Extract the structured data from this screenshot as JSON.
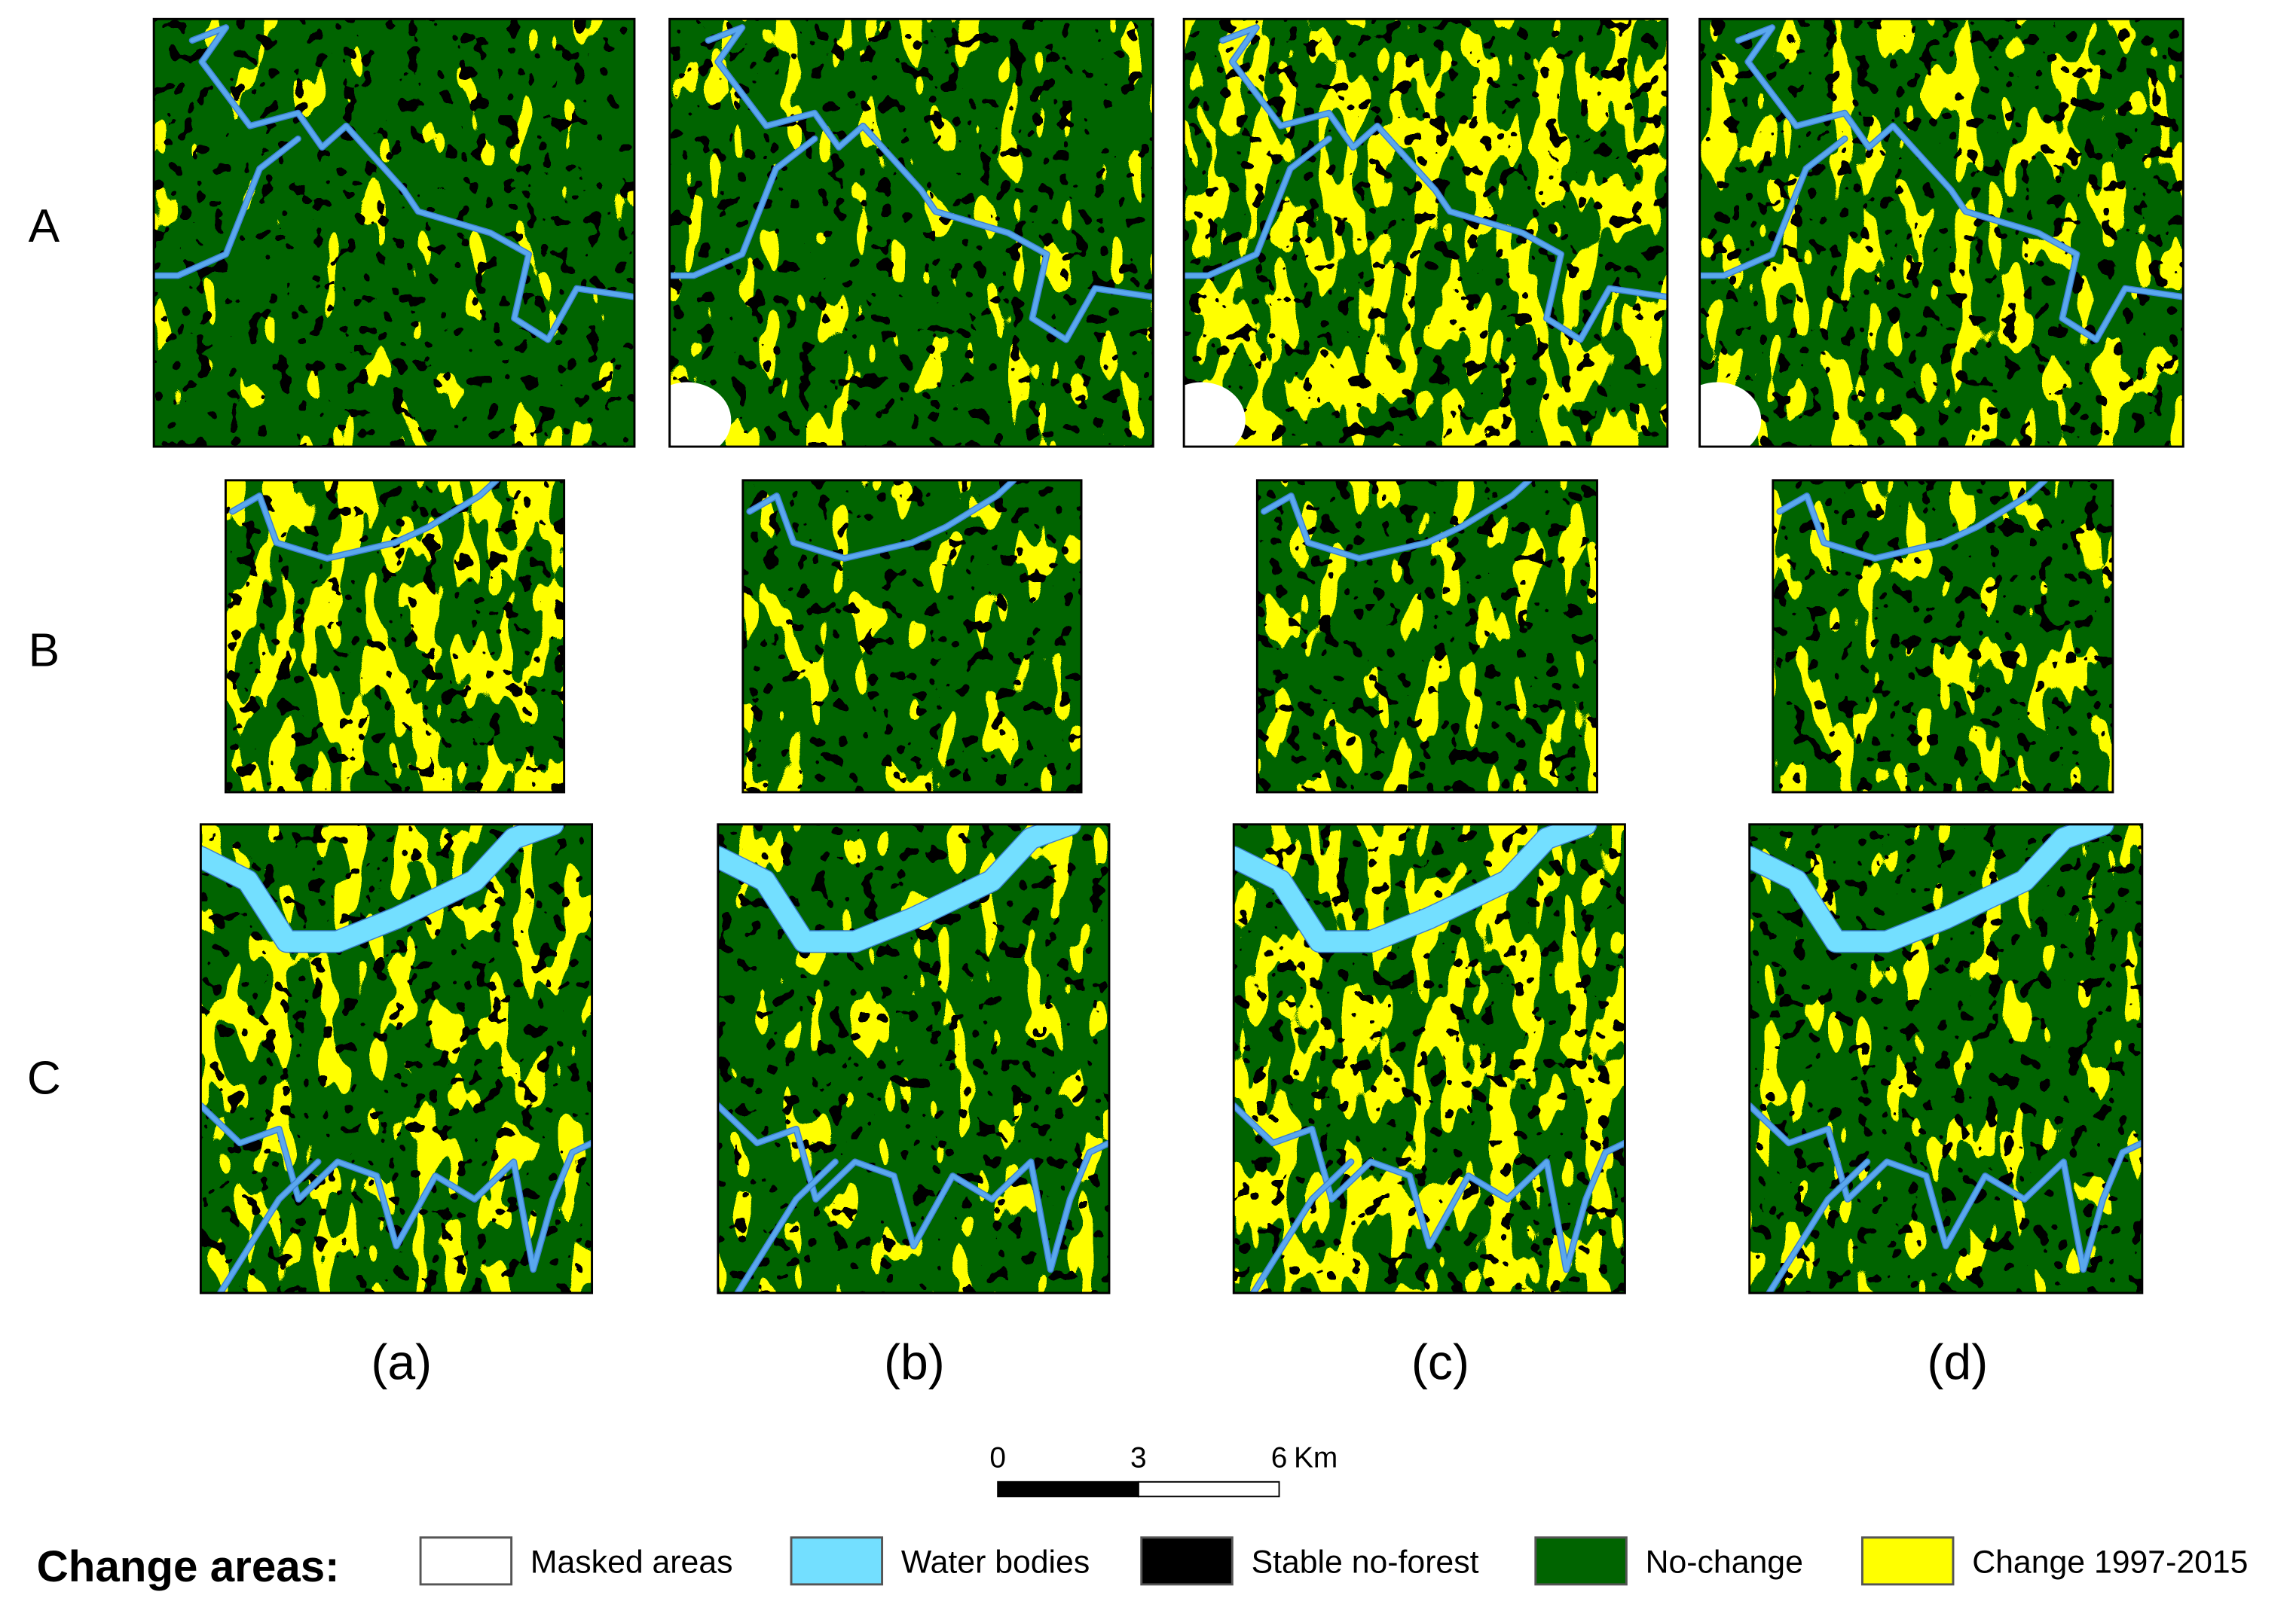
{
  "row_labels": [
    "A",
    "B",
    "C"
  ],
  "column_labels": [
    "(a)",
    "(b)",
    "(c)",
    "(d)"
  ],
  "scale_bar": {
    "ticks": [
      0,
      3,
      6
    ],
    "unit": "Km"
  },
  "legend": {
    "title": "Change areas:",
    "items": [
      {
        "label": "Masked areas",
        "color": "#ffffff"
      },
      {
        "label": "Water bodies",
        "color": "#73dfff"
      },
      {
        "label": "Stable no-forest",
        "color": "#000000"
      },
      {
        "label": "No-change",
        "color": "#006400"
      },
      {
        "label": "Change 1997-2015",
        "color": "#ffff00"
      }
    ]
  }
}
